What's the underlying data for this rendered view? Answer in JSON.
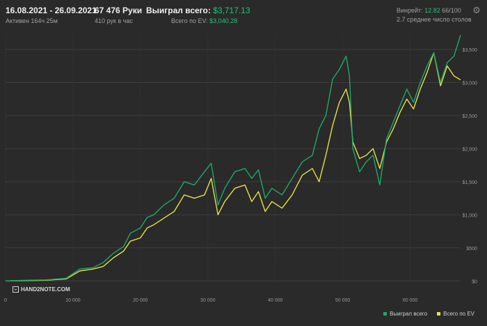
{
  "header": {
    "period": "16.08.2021 - 26.09.2021",
    "active": "Активен 164ч 25м",
    "hands": "67 476 Руки",
    "hands_per_hour": "410 рук в час",
    "won_label": "Выиграл всего:",
    "won_value": "$3,717.13",
    "ev_label": "Всего по EV:",
    "ev_value": "$3,040.28",
    "winrate_label": "Винрейт:",
    "winrate_value": "12.82",
    "winrate_suffix": "66/100",
    "avg_tables": "2.7 среднее число столов"
  },
  "logo_text": "HAND2NOTE.COM",
  "icons": {
    "settings": "gear-icon"
  },
  "colors": {
    "won": "#1fa86a",
    "ev": "#e6e04a",
    "background": "#2a2a2a",
    "grid": "#3e3e3e"
  },
  "chart_data": {
    "type": "line",
    "x_ticks": [
      "0",
      "10 000",
      "20 000",
      "30 000",
      "40 000",
      "50 000",
      "60 000"
    ],
    "x_tick_values": [
      0,
      10000,
      20000,
      30000,
      40000,
      50000,
      60000
    ],
    "y_ticks": [
      "$0",
      "$500",
      "$1,000",
      "$1,500",
      "$2,000",
      "$2,500",
      "$3,000",
      "$3,500"
    ],
    "y_tick_values": [
      0,
      500,
      1000,
      1500,
      2000,
      2500,
      3000,
      3500
    ],
    "xlim": [
      0,
      67476
    ],
    "ylim": [
      -50,
      3700
    ],
    "grid": true,
    "legend_position": "bottom-right",
    "series": [
      {
        "name": "Выиграл всего",
        "color": "#1fa86a",
        "x": [
          0,
          3000,
          6000,
          9000,
          11000,
          13000,
          14500,
          16000,
          17500,
          18500,
          20000,
          21000,
          22000,
          23500,
          25000,
          26500,
          28000,
          29500,
          30500,
          31500,
          32500,
          34000,
          35500,
          36500,
          37500,
          38500,
          39500,
          41000,
          42500,
          44000,
          45500,
          46500,
          47500,
          48500,
          49500,
          50500,
          51000,
          51500,
          52500,
          53500,
          54500,
          55500,
          56500,
          57500,
          58500,
          59500,
          60500,
          61500,
          62500,
          63500,
          64500,
          65500,
          66500,
          67476
        ],
        "values": [
          0,
          10,
          15,
          40,
          180,
          200,
          280,
          420,
          520,
          720,
          800,
          960,
          1000,
          1150,
          1250,
          1500,
          1450,
          1650,
          1780,
          1150,
          1400,
          1650,
          1700,
          1550,
          1680,
          1250,
          1400,
          1300,
          1550,
          1800,
          1900,
          2300,
          2500,
          3050,
          3200,
          3400,
          3100,
          2000,
          1650,
          1800,
          1900,
          1450,
          2150,
          2400,
          2650,
          2900,
          2700,
          3000,
          3250,
          3450,
          3000,
          3300,
          3400,
          3717
        ]
      },
      {
        "name": "Всего по EV",
        "color": "#e6e04a",
        "x": [
          0,
          3000,
          6000,
          9000,
          11000,
          13000,
          14500,
          16000,
          17500,
          18500,
          20000,
          21000,
          22000,
          23500,
          25000,
          26500,
          28000,
          29500,
          30500,
          31500,
          32500,
          34000,
          35500,
          36500,
          37500,
          38500,
          39500,
          41000,
          42500,
          44000,
          45500,
          46500,
          47500,
          48500,
          49500,
          50500,
          51000,
          51500,
          52500,
          53500,
          54500,
          55500,
          56500,
          57500,
          58500,
          59500,
          60500,
          61500,
          62500,
          63500,
          64500,
          65500,
          66500,
          67476
        ],
        "values": [
          0,
          5,
          10,
          30,
          150,
          180,
          220,
          350,
          450,
          600,
          650,
          800,
          850,
          950,
          1050,
          1300,
          1250,
          1300,
          1550,
          1000,
          1200,
          1400,
          1450,
          1200,
          1350,
          1050,
          1200,
          1100,
          1300,
          1600,
          1700,
          1500,
          1900,
          2350,
          2700,
          2900,
          2700,
          2100,
          1850,
          1900,
          2000,
          1700,
          2100,
          2300,
          2550,
          2750,
          2600,
          2900,
          3150,
          3450,
          2950,
          3250,
          3100,
          3040
        ]
      }
    ]
  }
}
